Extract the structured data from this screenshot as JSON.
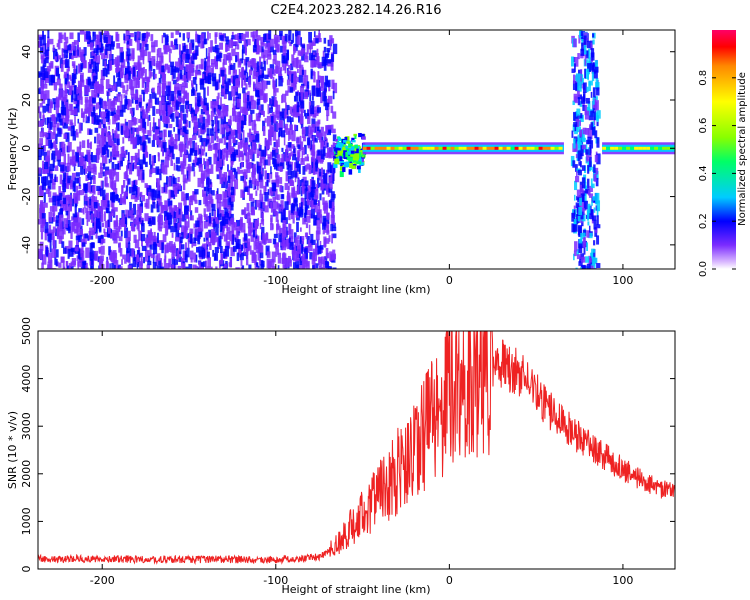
{
  "figure_title": "C2E4.2023.282.14.26.R16",
  "chart_data": [
    {
      "type": "heatmap",
      "xlabel": "Height of straight line (km)",
      "ylabel": "Frequency (Hz)",
      "xlim": [
        -237,
        130
      ],
      "ylim": [
        -50,
        49
      ],
      "x_ticks": [
        -200,
        -100,
        0,
        100
      ],
      "y_ticks": [
        -40,
        -20,
        0,
        20,
        40
      ],
      "colorbar": {
        "label": "Normalized spectral amplitude",
        "range": [
          0,
          1
        ],
        "ticks": [
          0.0,
          0.2,
          0.4,
          0.6,
          0.8
        ],
        "tick_labels": [
          "0.0",
          "0.2",
          "0.4",
          "0.6",
          "0.8"
        ],
        "colors": [
          "#ffffff",
          "#7b2cff",
          "#0000ff",
          "#00ccff",
          "#00ff66",
          "#88ff00",
          "#ffff00",
          "#ff8800",
          "#ff0000",
          "#ff0066"
        ]
      },
      "regions": [
        {
          "x": [
            -237,
            -67
          ],
          "y": [
            -50,
            49
          ],
          "amplitude": 0.15,
          "pattern": "noise"
        },
        {
          "x": [
            -67,
            -50
          ],
          "y": [
            -10,
            8
          ],
          "amplitude": 0.5,
          "pattern": "onset"
        },
        {
          "x": [
            -50,
            66
          ],
          "y": [
            -1.5,
            1.5
          ],
          "amplitude": 0.9,
          "pattern": "signal line"
        },
        {
          "x": [
            70,
            85
          ],
          "y": [
            -50,
            49
          ],
          "amplitude": 0.25,
          "pattern": "broadband band"
        },
        {
          "x": [
            88,
            130
          ],
          "y": [
            -1.5,
            1.5
          ],
          "amplitude": 0.7,
          "pattern": "signal line"
        }
      ]
    },
    {
      "type": "line",
      "xlabel": "Height of straight line (km)",
      "ylabel": "SNR (10 * v/v)",
      "xlim": [
        -237,
        130
      ],
      "ylim": [
        0,
        5000
      ],
      "x_ticks": [
        -200,
        -100,
        0,
        100
      ],
      "y_ticks": [
        0,
        1000,
        2000,
        3000,
        4000,
        5000
      ],
      "series": [
        {
          "color": "#ee2222",
          "x": [
            -237,
            -200,
            -150,
            -100,
            -75,
            -65,
            -55,
            -45,
            -35,
            -25,
            -15,
            -5,
            0,
            5,
            10,
            20,
            30,
            40,
            50,
            60,
            70,
            80,
            90,
            100,
            110,
            120,
            130
          ],
          "y": [
            220,
            210,
            200,
            200,
            250,
            500,
            950,
            1350,
            1800,
            2300,
            2750,
            3300,
            3750,
            3950,
            4000,
            4250,
            4350,
            4100,
            3700,
            3250,
            2900,
            2600,
            2350,
            2100,
            1900,
            1700,
            1600
          ]
        }
      ]
    }
  ]
}
